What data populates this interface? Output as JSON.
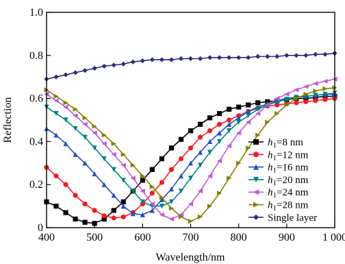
{
  "chart_data": {
    "type": "line",
    "title": "",
    "xlabel": "Wavelength/nm",
    "ylabel": "Reflection",
    "xlim": [
      400,
      1000
    ],
    "ylim": [
      0,
      1.0
    ],
    "x_ticks": [
      "400",
      "500",
      "600",
      "700",
      "800",
      "900",
      "1 000"
    ],
    "y_ticks": [
      "0",
      "0.2",
      "0.4",
      "0.6",
      "0.8",
      "1.0"
    ],
    "grid": false,
    "legend_position": "right",
    "series": [
      {
        "name": "h1=8 nm",
        "legend_var": "h",
        "legend_sub": "1",
        "legend_rest": "=8 nm",
        "color": "#000000",
        "marker": "square",
        "x": [
          400,
          420,
          440,
          460,
          480,
          500,
          520,
          540,
          560,
          580,
          600,
          620,
          640,
          660,
          680,
          700,
          720,
          740,
          760,
          780,
          800,
          820,
          840,
          860,
          880,
          900,
          920,
          940,
          960,
          980,
          1000
        ],
        "y": [
          0.12,
          0.1,
          0.07,
          0.04,
          0.025,
          0.02,
          0.04,
          0.08,
          0.12,
          0.17,
          0.22,
          0.27,
          0.32,
          0.37,
          0.41,
          0.45,
          0.48,
          0.51,
          0.53,
          0.55,
          0.56,
          0.57,
          0.58,
          0.585,
          0.59,
          0.595,
          0.6,
          0.6,
          0.605,
          0.61,
          0.61
        ]
      },
      {
        "name": "h1=12 nm",
        "legend_var": "h",
        "legend_sub": "1",
        "legend_rest": "=12 nm",
        "color": "#ee1c24",
        "marker": "circle",
        "x": [
          400,
          420,
          440,
          460,
          480,
          500,
          520,
          540,
          560,
          580,
          600,
          620,
          640,
          660,
          680,
          700,
          720,
          740,
          760,
          780,
          800,
          820,
          840,
          860,
          880,
          900,
          920,
          940,
          960,
          980,
          1000
        ],
        "y": [
          0.28,
          0.24,
          0.2,
          0.15,
          0.11,
          0.08,
          0.055,
          0.045,
          0.05,
          0.07,
          0.11,
          0.16,
          0.21,
          0.27,
          0.32,
          0.37,
          0.42,
          0.45,
          0.48,
          0.5,
          0.52,
          0.54,
          0.555,
          0.565,
          0.57,
          0.575,
          0.58,
          0.585,
          0.59,
          0.595,
          0.6
        ]
      },
      {
        "name": "h1=16 nm",
        "legend_var": "h",
        "legend_sub": "1",
        "legend_rest": "=16 nm",
        "color": "#1f4fc1",
        "marker": "triangle-up",
        "x": [
          400,
          420,
          440,
          460,
          480,
          500,
          520,
          540,
          560,
          580,
          600,
          620,
          640,
          660,
          680,
          700,
          720,
          740,
          760,
          780,
          800,
          820,
          840,
          860,
          880,
          900,
          920,
          940,
          960,
          980,
          1000
        ],
        "y": [
          0.46,
          0.43,
          0.39,
          0.34,
          0.3,
          0.25,
          0.2,
          0.15,
          0.1,
          0.065,
          0.06,
          0.08,
          0.13,
          0.18,
          0.24,
          0.3,
          0.35,
          0.4,
          0.44,
          0.48,
          0.51,
          0.54,
          0.56,
          0.575,
          0.59,
          0.6,
          0.605,
          0.61,
          0.615,
          0.62,
          0.62
        ]
      },
      {
        "name": "h1=20 nm",
        "legend_var": "h",
        "legend_sub": "1",
        "legend_rest": "=20 nm",
        "color": "#008080",
        "marker": "triangle-down",
        "x": [
          400,
          420,
          440,
          460,
          480,
          500,
          520,
          540,
          560,
          580,
          600,
          620,
          640,
          660,
          680,
          700,
          720,
          740,
          760,
          780,
          800,
          820,
          840,
          860,
          880,
          900,
          920,
          940,
          960,
          980,
          1000
        ],
        "y": [
          0.56,
          0.53,
          0.5,
          0.46,
          0.42,
          0.37,
          0.32,
          0.27,
          0.22,
          0.17,
          0.12,
          0.1,
          0.1,
          0.12,
          0.17,
          0.23,
          0.29,
          0.35,
          0.4,
          0.45,
          0.49,
          0.52,
          0.55,
          0.57,
          0.585,
          0.595,
          0.605,
          0.61,
          0.615,
          0.62,
          0.625
        ]
      },
      {
        "name": "h1=24 nm",
        "legend_var": "h",
        "legend_sub": "1",
        "legend_rest": "=24 nm",
        "color": "#c05ad8",
        "marker": "triangle-left",
        "x": [
          400,
          420,
          440,
          460,
          480,
          500,
          520,
          540,
          560,
          580,
          600,
          620,
          640,
          660,
          680,
          700,
          720,
          740,
          760,
          780,
          800,
          820,
          840,
          860,
          880,
          900,
          920,
          940,
          960,
          980,
          1000
        ],
        "y": [
          0.62,
          0.59,
          0.56,
          0.52,
          0.48,
          0.44,
          0.39,
          0.34,
          0.29,
          0.23,
          0.17,
          0.11,
          0.06,
          0.04,
          0.06,
          0.11,
          0.17,
          0.24,
          0.31,
          0.38,
          0.44,
          0.49,
          0.53,
          0.57,
          0.6,
          0.62,
          0.64,
          0.655,
          0.67,
          0.68,
          0.69
        ]
      },
      {
        "name": "h1=28 nm",
        "legend_var": "h",
        "legend_sub": "1",
        "legend_rest": "=28 nm",
        "color": "#808000",
        "marker": "triangle-right",
        "x": [
          400,
          420,
          440,
          460,
          480,
          500,
          520,
          540,
          560,
          580,
          600,
          620,
          640,
          660,
          680,
          700,
          720,
          740,
          760,
          780,
          800,
          820,
          840,
          860,
          880,
          900,
          920,
          940,
          960,
          980,
          1000
        ],
        "y": [
          0.64,
          0.61,
          0.58,
          0.55,
          0.51,
          0.47,
          0.43,
          0.39,
          0.34,
          0.29,
          0.24,
          0.19,
          0.14,
          0.09,
          0.05,
          0.03,
          0.05,
          0.1,
          0.16,
          0.23,
          0.3,
          0.37,
          0.43,
          0.49,
          0.53,
          0.57,
          0.6,
          0.62,
          0.635,
          0.645,
          0.65
        ]
      },
      {
        "name": "Single layer",
        "legend_label": "Single layer",
        "color": "#2e2b7a",
        "marker": "diamond",
        "x": [
          400,
          420,
          440,
          460,
          480,
          500,
          520,
          540,
          560,
          580,
          600,
          620,
          640,
          660,
          680,
          700,
          720,
          740,
          760,
          780,
          800,
          820,
          840,
          860,
          880,
          900,
          920,
          940,
          960,
          980,
          1000
        ],
        "y": [
          0.69,
          0.7,
          0.71,
          0.72,
          0.73,
          0.74,
          0.75,
          0.755,
          0.76,
          0.77,
          0.775,
          0.78,
          0.78,
          0.78,
          0.785,
          0.785,
          0.785,
          0.79,
          0.79,
          0.79,
          0.79,
          0.79,
          0.795,
          0.795,
          0.795,
          0.8,
          0.8,
          0.8,
          0.805,
          0.805,
          0.81
        ]
      }
    ]
  }
}
